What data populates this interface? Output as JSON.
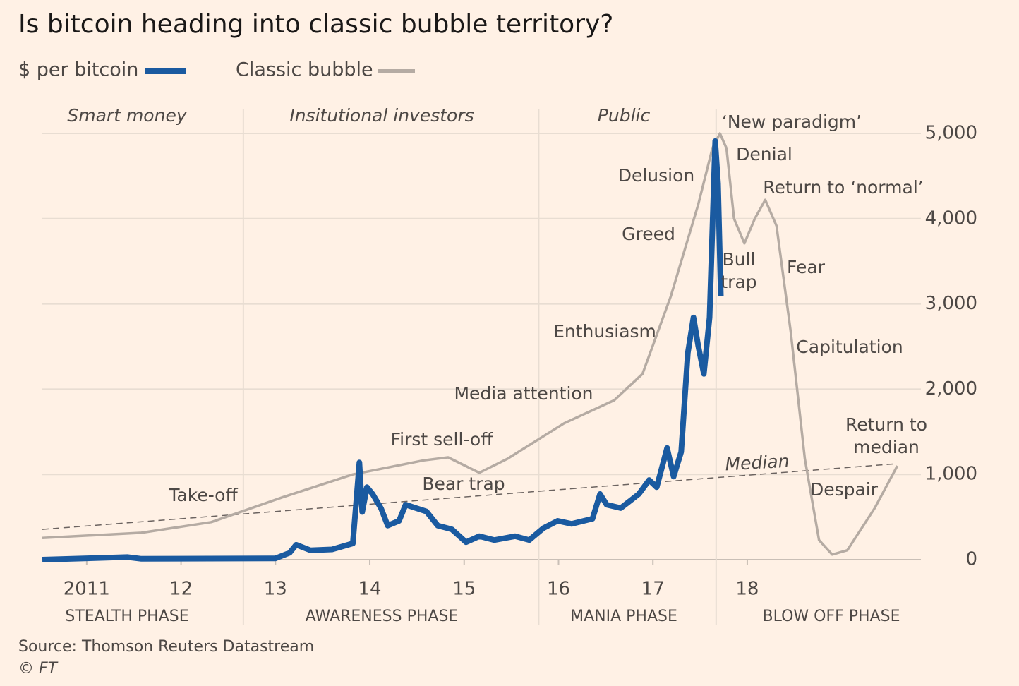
{
  "chart_data": {
    "type": "line",
    "title": "Is bitcoin heading into classic bubble territory?",
    "source": "Source: Thomson Reuters Datastream",
    "credit": "© FT",
    "series": [
      {
        "name": "$ per bitcoin",
        "color": "#1a5aa0",
        "x": [
          2010.53,
          2011.43,
          2011.58,
          2013.0,
          2013.15,
          2013.22,
          2013.37,
          2013.6,
          2013.82,
          2013.89,
          2013.92,
          2013.97,
          2014.03,
          2014.12,
          2014.19,
          2014.31,
          2014.38,
          2014.49,
          2014.6,
          2014.72,
          2014.87,
          2015.02,
          2015.16,
          2015.32,
          2015.54,
          2015.69,
          2015.84,
          2015.99,
          2016.14,
          2016.36,
          2016.44,
          2016.51,
          2016.66,
          2016.85,
          2016.96,
          2017.04,
          2017.15,
          2017.22,
          2017.3,
          2017.37,
          2017.43,
          2017.48,
          2017.54,
          2017.6,
          2017.66,
          2017.69,
          2017.72
        ],
        "values": [
          0,
          30,
          10,
          15,
          80,
          175,
          110,
          120,
          190,
          1140,
          560,
          850,
          770,
          600,
          400,
          455,
          645,
          605,
          565,
          400,
          355,
          205,
          275,
          230,
          275,
          230,
          370,
          455,
          420,
          480,
          770,
          645,
          605,
          770,
          935,
          850,
          1310,
          975,
          1265,
          2425,
          2840,
          2510,
          2180,
          2840,
          4910,
          4410,
          3090
        ]
      },
      {
        "name": "Classic bubble",
        "color": "#b5aba3",
        "x": [
          2010.53,
          2011.58,
          2012.32,
          2013.07,
          2013.82,
          2014.57,
          2014.83,
          2015.16,
          2015.46,
          2016.06,
          2016.59,
          2016.89,
          2017.19,
          2017.48,
          2017.63,
          2017.71,
          2017.78,
          2017.86,
          2017.97,
          2018.08,
          2018.19,
          2018.31,
          2018.46,
          2018.61,
          2018.76,
          2018.9,
          2019.06,
          2019.35,
          2019.59
        ],
        "values": [
          255,
          315,
          440,
          730,
          1000,
          1165,
          1200,
          1020,
          1185,
          1600,
          1870,
          2180,
          3090,
          4165,
          4825,
          5000,
          4825,
          4000,
          3710,
          4000,
          4220,
          3915,
          2675,
          1185,
          230,
          60,
          110,
          605,
          1100
        ]
      }
    ],
    "median": {
      "label": "Median",
      "color": "#6b6360",
      "x": [
        2010.53,
        2019.58
      ],
      "values": [
        355,
        1125
      ]
    },
    "xlim": [
      2010.53,
      2019.84
    ],
    "ylim": [
      0,
      5000
    ],
    "xticks": [
      2011,
      {
        "value": 2012,
        "label": "12"
      },
      {
        "value": 2013,
        "label": "13"
      },
      {
        "value": 2014,
        "label": "14"
      },
      {
        "value": 2015,
        "label": "15"
      },
      {
        "value": 2016,
        "label": "16"
      },
      {
        "value": 2017,
        "label": "17"
      },
      {
        "value": 2018,
        "label": "18"
      }
    ],
    "yticks": [
      0,
      {
        "value": 1000,
        "label": "1,000"
      },
      {
        "value": 2000,
        "label": "2,000"
      },
      {
        "value": 3000,
        "label": "3,000"
      },
      {
        "value": 4000,
        "label": "4,000"
      },
      {
        "value": 5000,
        "label": "5,000"
      }
    ],
    "grid": true,
    "phase_boundaries": [
      2012.66,
      2015.79,
      2017.67
    ],
    "phases": [
      {
        "label": "Smart money",
        "phase": "STEALTH PHASE"
      },
      {
        "label": "Insitutional investors",
        "phase": "AWARENESS PHASE"
      },
      {
        "label": "Public",
        "phase": "MANIA PHASE"
      },
      {
        "label": null,
        "phase": "BLOW OFF PHASE"
      }
    ],
    "annotations": [
      {
        "lines": [
          "Take-off"
        ]
      },
      {
        "lines": [
          "First sell-off"
        ]
      },
      {
        "lines": [
          "Bear trap"
        ]
      },
      {
        "lines": [
          "Media attention"
        ]
      },
      {
        "lines": [
          "Enthusiasm"
        ]
      },
      {
        "lines": [
          "Greed"
        ]
      },
      {
        "lines": [
          "Delusion"
        ]
      },
      {
        "lines": [
          "‘New paradigm’"
        ]
      },
      {
        "lines": [
          "Denial"
        ]
      },
      {
        "lines": [
          "Return to ‘normal’"
        ]
      },
      {
        "lines": [
          "Bull",
          "trap"
        ]
      },
      {
        "lines": [
          "Fear"
        ]
      },
      {
        "lines": [
          "Capitulation"
        ]
      },
      {
        "lines": [
          "Return to",
          "median"
        ]
      },
      {
        "lines": [
          "Despair"
        ]
      }
    ]
  }
}
